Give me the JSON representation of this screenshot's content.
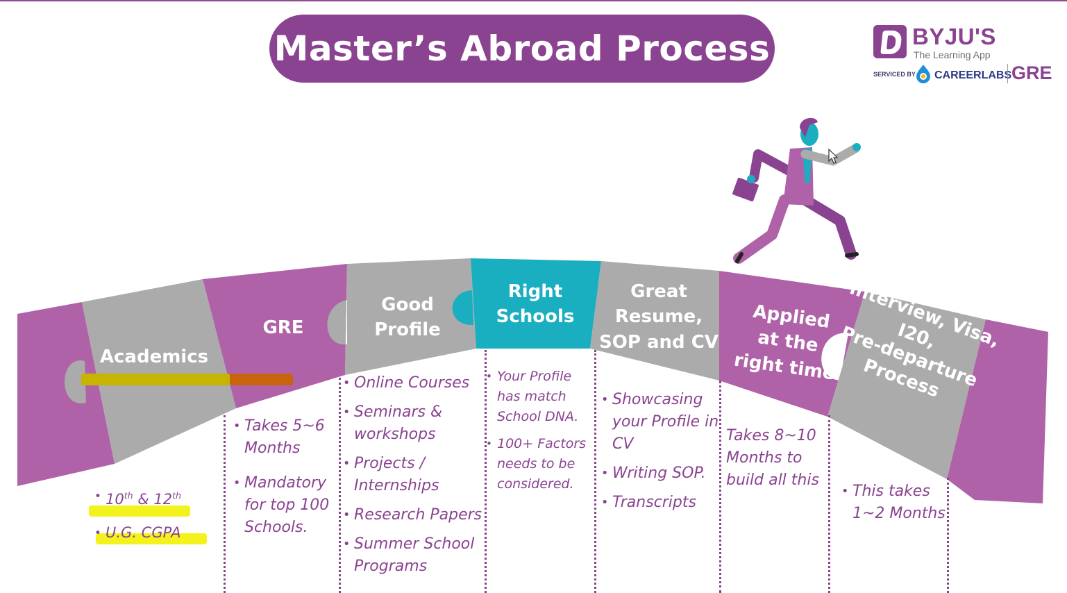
{
  "title": "Master’s Abroad Process",
  "logo": {
    "brand": "BYJU'S",
    "tagline": "The Learning App",
    "serviced_by": "SERVICED BY",
    "partner": "CAREERLABS",
    "product": "GRE"
  },
  "steps": [
    {
      "label": "Academics",
      "bullets": [
        "10th & 12th",
        "U.G. CGPA"
      ]
    },
    {
      "label": "GRE",
      "bullets": [
        "Takes 5~6 Months",
        "Mandatory for top 100 Schools."
      ]
    },
    {
      "label": "Good\nProfile",
      "bullets": [
        "Online Courses",
        "Seminars & workshops",
        "Projects / Internships",
        "Research Papers",
        "Summer School Programs"
      ]
    },
    {
      "label": "Right\nSchools",
      "bullets": [
        "Your Profile has match School DNA.",
        "100+ Factors needs to be considered."
      ]
    },
    {
      "label": "Great\nResume,\nSOP and CV",
      "bullets": [
        "Showcasing your Profile in CV",
        "Writing SOP.",
        "Transcripts"
      ]
    },
    {
      "label": "Applied\nat the\nright time",
      "note": "Takes 8~10 Months to build all this"
    },
    {
      "label": "Interview, Visa,\nI20,\nPre-departure\nProcess",
      "bullets": [
        "This takes 1~2 Months"
      ]
    }
  ],
  "colors": {
    "purple": "#8a4390",
    "piece_purple": "#b062a8",
    "gray": "#ababab",
    "teal": "#1aafc0",
    "highlight": "#f4f21d"
  },
  "icons": [
    "running-businessman-icon",
    "mouse-cursor-icon",
    "careerlabs-logo-icon"
  ]
}
